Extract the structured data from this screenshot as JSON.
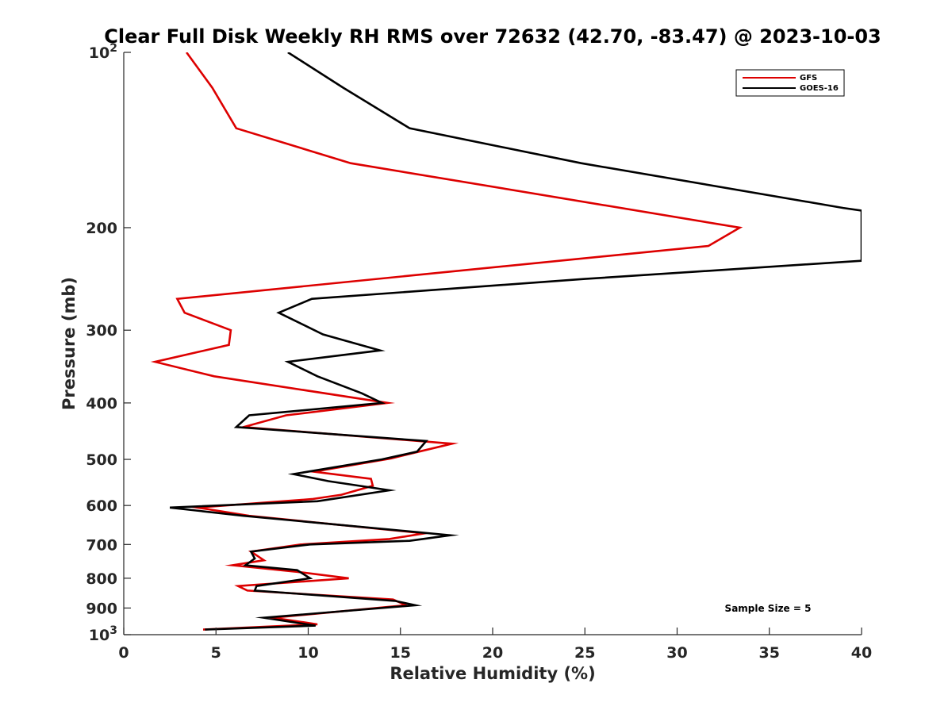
{
  "chart_data": {
    "type": "line",
    "title": "Clear Full Disk Weekly RH RMS over 72632 (42.70, -83.47) @ 2023-10-03",
    "xlabel": "Relative Humidity (%)",
    "ylabel": "Pressure (mb)",
    "xlim": [
      0,
      40
    ],
    "ylim": [
      100,
      1000
    ],
    "y_scale": "log",
    "y_reversed": true,
    "x_ticks": [
      "0",
      "5",
      "10",
      "15",
      "20",
      "25",
      "30",
      "35",
      "40"
    ],
    "y_ticks": [
      {
        "value": 100,
        "base": "10",
        "exp": "2"
      },
      {
        "value": 200,
        "label": "200"
      },
      {
        "value": 300,
        "label": "300"
      },
      {
        "value": 400,
        "label": "400"
      },
      {
        "value": 500,
        "label": "500"
      },
      {
        "value": 600,
        "label": "600"
      },
      {
        "value": 700,
        "label": "700"
      },
      {
        "value": 800,
        "label": "800"
      },
      {
        "value": 900,
        "label": "900"
      },
      {
        "value": 1000,
        "base": "10",
        "exp": "3"
      }
    ],
    "grid": false,
    "legend_position": "top-right",
    "annotation": "Sample Size = 5",
    "series": [
      {
        "name": "GFS",
        "color": "#dd0000",
        "points": [
          [
            3.4,
            100
          ],
          [
            4.8,
            115
          ],
          [
            6.1,
            135
          ],
          [
            12.3,
            155
          ],
          [
            33.4,
            200
          ],
          [
            31.7,
            215
          ],
          [
            2.9,
            265
          ],
          [
            3.3,
            280
          ],
          [
            5.8,
            300
          ],
          [
            5.7,
            318
          ],
          [
            1.7,
            340
          ],
          [
            4.9,
            360
          ],
          [
            14.3,
            400
          ],
          [
            8.8,
            420
          ],
          [
            6.5,
            440
          ],
          [
            17.8,
            470
          ],
          [
            16.0,
            485
          ],
          [
            14.5,
            498
          ],
          [
            10.3,
            525
          ],
          [
            13.4,
            540
          ],
          [
            13.5,
            555
          ],
          [
            11.8,
            575
          ],
          [
            10.2,
            585
          ],
          [
            4.0,
            605
          ],
          [
            6.8,
            625
          ],
          [
            16.3,
            670
          ],
          [
            14.4,
            685
          ],
          [
            9.6,
            700
          ],
          [
            6.9,
            720
          ],
          [
            7.6,
            745
          ],
          [
            5.9,
            760
          ],
          [
            9.4,
            780
          ],
          [
            12.2,
            800
          ],
          [
            6.2,
            825
          ],
          [
            6.7,
            840
          ],
          [
            14.6,
            870
          ],
          [
            15.3,
            890
          ],
          [
            8.1,
            935
          ],
          [
            10.5,
            960
          ],
          [
            4.3,
            980
          ]
        ]
      },
      {
        "name": "GOES-16",
        "color": "#000000",
        "points": [
          [
            8.9,
            100
          ],
          [
            11.9,
            115
          ],
          [
            15.5,
            135
          ],
          [
            24.8,
            155
          ],
          [
            39.0,
            185
          ],
          [
            40.0,
            187
          ],
          [
            40.0,
            228
          ],
          [
            25.0,
            245
          ],
          [
            10.2,
            265
          ],
          [
            8.4,
            280
          ],
          [
            10.8,
            305
          ],
          [
            13.9,
            325
          ],
          [
            8.9,
            340
          ],
          [
            10.5,
            360
          ],
          [
            12.9,
            385
          ],
          [
            14.0,
            400
          ],
          [
            6.8,
            420
          ],
          [
            6.1,
            440
          ],
          [
            16.4,
            465
          ],
          [
            15.9,
            485
          ],
          [
            14.0,
            500
          ],
          [
            9.2,
            530
          ],
          [
            11.1,
            545
          ],
          [
            14.4,
            565
          ],
          [
            10.5,
            590
          ],
          [
            2.5,
            605
          ],
          [
            6.5,
            625
          ],
          [
            17.7,
            675
          ],
          [
            15.5,
            690
          ],
          [
            10.1,
            700
          ],
          [
            6.9,
            720
          ],
          [
            7.1,
            740
          ],
          [
            6.6,
            760
          ],
          [
            9.4,
            775
          ],
          [
            10.1,
            800
          ],
          [
            7.2,
            825
          ],
          [
            7.1,
            840
          ],
          [
            14.7,
            875
          ],
          [
            15.8,
            890
          ],
          [
            7.6,
            935
          ],
          [
            10.4,
            965
          ],
          [
            4.4,
            980
          ]
        ]
      }
    ]
  }
}
